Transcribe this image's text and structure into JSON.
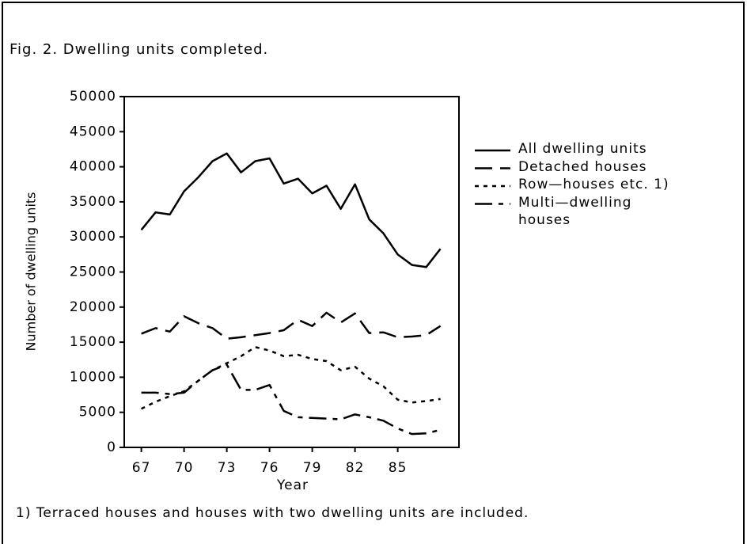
{
  "chart_data": {
    "type": "line",
    "title": "Fig. 2. Dwelling units completed.",
    "x_label": "Year",
    "y_label": "Number of dwelling units",
    "x": [
      67,
      68,
      69,
      70,
      71,
      72,
      73,
      74,
      75,
      76,
      77,
      78,
      79,
      80,
      81,
      82,
      83,
      84,
      85,
      86,
      87,
      88
    ],
    "series": [
      {
        "name": "All dwelling units",
        "color": "#000000",
        "values": [
          31000,
          33500,
          33200,
          36500,
          38500,
          40800,
          41900,
          39200,
          40800,
          41200,
          37600,
          38300,
          36200,
          37300,
          34000,
          37500,
          32500,
          30500,
          27500,
          26000,
          25700,
          28300
        ]
      },
      {
        "name": "Detached houses",
        "color": "#000000",
        "values": [
          16200,
          17000,
          16500,
          18700,
          17700,
          17000,
          15500,
          15700,
          16000,
          16300,
          16700,
          18200,
          17300,
          19200,
          17800,
          19100,
          16300,
          16400,
          15700,
          15800,
          16000,
          17300
        ]
      },
      {
        "name": "Row—houses etc. 1)",
        "color": "#000000",
        "values": [
          5500,
          6500,
          7300,
          8000,
          9500,
          11000,
          12000,
          13000,
          14300,
          13800,
          13000,
          13200,
          12600,
          12300,
          11000,
          11500,
          9800,
          8700,
          6800,
          6400,
          6600,
          6900
        ]
      },
      {
        "name": "Multi—dwelling houses",
        "color": "#000000",
        "values": [
          7800,
          7800,
          7600,
          7800,
          9500,
          11000,
          11800,
          8200,
          8200,
          8900,
          5200,
          4300,
          4200,
          4100,
          4000,
          4700,
          4300,
          3800,
          2700,
          1900,
          2000,
          2500
        ]
      }
    ],
    "xlim": [
      65.8,
      89.3
    ],
    "xticks": [
      67,
      70,
      73,
      76,
      79,
      82,
      85
    ],
    "ylim": [
      0,
      50000
    ],
    "yticks": [
      0,
      5000,
      10000,
      15000,
      20000,
      25000,
      30000,
      35000,
      40000,
      45000,
      50000
    ],
    "footnote": "1) Terraced houses and houses with two dwelling units are included."
  }
}
